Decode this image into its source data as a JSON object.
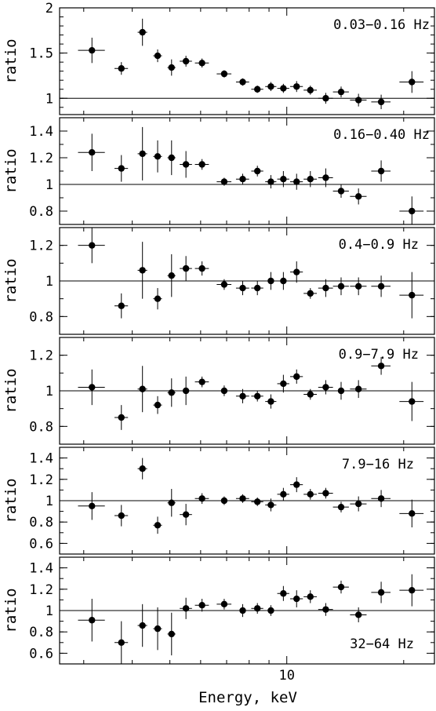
{
  "chart_data": [
    {
      "type": "scatter",
      "panel_label": "0.03−0.16 Hz",
      "ylabel": "ratio",
      "ylim": [
        0.82,
        2.0
      ],
      "yticks": [
        1,
        1.5,
        2
      ],
      "ytick_labels": [
        "1",
        "1.5",
        "2"
      ],
      "reference_line": 1,
      "points": [
        {
          "x": 3.15,
          "xerr": [
            0.25,
            0.25
          ],
          "y": 1.53,
          "yerr": 0.14
        },
        {
          "x": 3.75,
          "xerr": [
            0.15,
            0.15
          ],
          "y": 1.33,
          "yerr": 0.07
        },
        {
          "x": 4.25,
          "xerr": [
            0.12,
            0.12
          ],
          "y": 1.73,
          "yerr": 0.15
        },
        {
          "x": 4.65,
          "xerr": [
            0.12,
            0.12
          ],
          "y": 1.47,
          "yerr": 0.07
        },
        {
          "x": 5.05,
          "xerr": [
            0.12,
            0.12
          ],
          "y": 1.34,
          "yerr": 0.09
        },
        {
          "x": 5.5,
          "xerr": [
            0.2,
            0.2
          ],
          "y": 1.41,
          "yerr": 0.06
        },
        {
          "x": 6.05,
          "xerr": [
            0.25,
            0.25
          ],
          "y": 1.39,
          "yerr": 0.05
        },
        {
          "x": 6.9,
          "xerr": [
            0.3,
            0.3
          ],
          "y": 1.27,
          "yerr": 0.04
        },
        {
          "x": 7.7,
          "xerr": [
            0.3,
            0.3
          ],
          "y": 1.18,
          "yerr": 0.04
        },
        {
          "x": 8.4,
          "xerr": [
            0.3,
            0.3
          ],
          "y": 1.1,
          "yerr": 0.04
        },
        {
          "x": 9.1,
          "xerr": [
            0.3,
            0.3
          ],
          "y": 1.13,
          "yerr": 0.05
        },
        {
          "x": 9.8,
          "xerr": [
            0.35,
            0.35
          ],
          "y": 1.11,
          "yerr": 0.05
        },
        {
          "x": 10.6,
          "xerr": [
            0.4,
            0.4
          ],
          "y": 1.13,
          "yerr": 0.06
        },
        {
          "x": 11.5,
          "xerr": [
            0.45,
            0.45
          ],
          "y": 1.09,
          "yerr": 0.05
        },
        {
          "x": 12.6,
          "xerr": [
            0.55,
            0.55
          ],
          "y": 1.0,
          "yerr": 0.06
        },
        {
          "x": 13.8,
          "xerr": [
            0.65,
            0.65
          ],
          "y": 1.07,
          "yerr": 0.06
        },
        {
          "x": 15.3,
          "xerr": [
            0.75,
            0.75
          ],
          "y": 0.98,
          "yerr": 0.07
        },
        {
          "x": 17.5,
          "xerr": [
            1.0,
            1.0
          ],
          "y": 0.96,
          "yerr": 0.08
        },
        {
          "x": 21.0,
          "xerr": [
            1.5,
            1.5
          ],
          "y": 1.18,
          "yerr": 0.12
        }
      ]
    },
    {
      "type": "scatter",
      "panel_label": "0.16−0.40 Hz",
      "ylabel": "ratio",
      "ylim": [
        0.7,
        1.5
      ],
      "yticks": [
        0.8,
        1,
        1.2,
        1.4
      ],
      "ytick_labels": [
        "0.8",
        "1",
        "1.2",
        "1.4"
      ],
      "reference_line": 1,
      "points": [
        {
          "x": 3.15,
          "xerr": [
            0.25,
            0.25
          ],
          "y": 1.24,
          "yerr": 0.14
        },
        {
          "x": 3.75,
          "xerr": [
            0.15,
            0.15
          ],
          "y": 1.12,
          "yerr": 0.1
        },
        {
          "x": 4.25,
          "xerr": [
            0.12,
            0.12
          ],
          "y": 1.23,
          "yerr": 0.2
        },
        {
          "x": 4.65,
          "xerr": [
            0.12,
            0.12
          ],
          "y": 1.21,
          "yerr": 0.12
        },
        {
          "x": 5.05,
          "xerr": [
            0.12,
            0.12
          ],
          "y": 1.2,
          "yerr": 0.13
        },
        {
          "x": 5.5,
          "xerr": [
            0.2,
            0.2
          ],
          "y": 1.15,
          "yerr": 0.1
        },
        {
          "x": 6.05,
          "xerr": [
            0.25,
            0.25
          ],
          "y": 1.15,
          "yerr": 0.04
        },
        {
          "x": 6.9,
          "xerr": [
            0.3,
            0.3
          ],
          "y": 1.02,
          "yerr": 0.03
        },
        {
          "x": 7.7,
          "xerr": [
            0.3,
            0.3
          ],
          "y": 1.04,
          "yerr": 0.04
        },
        {
          "x": 8.4,
          "xerr": [
            0.3,
            0.3
          ],
          "y": 1.1,
          "yerr": 0.04
        },
        {
          "x": 9.1,
          "xerr": [
            0.3,
            0.3
          ],
          "y": 1.02,
          "yerr": 0.05
        },
        {
          "x": 9.8,
          "xerr": [
            0.35,
            0.35
          ],
          "y": 1.04,
          "yerr": 0.06
        },
        {
          "x": 10.6,
          "xerr": [
            0.4,
            0.4
          ],
          "y": 1.02,
          "yerr": 0.06
        },
        {
          "x": 11.5,
          "xerr": [
            0.45,
            0.45
          ],
          "y": 1.04,
          "yerr": 0.06
        },
        {
          "x": 12.6,
          "xerr": [
            0.55,
            0.55
          ],
          "y": 1.05,
          "yerr": 0.07
        },
        {
          "x": 13.8,
          "xerr": [
            0.65,
            0.65
          ],
          "y": 0.95,
          "yerr": 0.05
        },
        {
          "x": 15.3,
          "xerr": [
            0.75,
            0.75
          ],
          "y": 0.91,
          "yerr": 0.06
        },
        {
          "x": 17.5,
          "xerr": [
            1.0,
            1.0
          ],
          "y": 1.1,
          "yerr": 0.08
        },
        {
          "x": 21.0,
          "xerr": [
            1.5,
            1.5
          ],
          "y": 0.8,
          "yerr": 0.11
        }
      ]
    },
    {
      "type": "scatter",
      "panel_label": "0.4−0.9 Hz",
      "ylabel": "ratio",
      "ylim": [
        0.7,
        1.3
      ],
      "yticks": [
        0.8,
        1,
        1.2
      ],
      "ytick_labels": [
        "0.8",
        "1",
        "1.2"
      ],
      "reference_line": 1,
      "points": [
        {
          "x": 3.15,
          "xerr": [
            0.25,
            0.25
          ],
          "y": 1.2,
          "yerr": 0.1
        },
        {
          "x": 3.75,
          "xerr": [
            0.15,
            0.15
          ],
          "y": 0.86,
          "yerr": 0.07
        },
        {
          "x": 4.25,
          "xerr": [
            0.12,
            0.12
          ],
          "y": 1.06,
          "yerr": 0.16
        },
        {
          "x": 4.65,
          "xerr": [
            0.12,
            0.12
          ],
          "y": 0.9,
          "yerr": 0.06
        },
        {
          "x": 5.05,
          "xerr": [
            0.12,
            0.12
          ],
          "y": 1.03,
          "yerr": 0.12
        },
        {
          "x": 5.5,
          "xerr": [
            0.2,
            0.2
          ],
          "y": 1.07,
          "yerr": 0.07
        },
        {
          "x": 6.05,
          "xerr": [
            0.25,
            0.25
          ],
          "y": 1.07,
          "yerr": 0.04
        },
        {
          "x": 6.9,
          "xerr": [
            0.3,
            0.3
          ],
          "y": 0.98,
          "yerr": 0.03
        },
        {
          "x": 7.7,
          "xerr": [
            0.3,
            0.3
          ],
          "y": 0.96,
          "yerr": 0.04
        },
        {
          "x": 8.4,
          "xerr": [
            0.3,
            0.3
          ],
          "y": 0.96,
          "yerr": 0.04
        },
        {
          "x": 9.1,
          "xerr": [
            0.3,
            0.3
          ],
          "y": 1.0,
          "yerr": 0.05
        },
        {
          "x": 9.8,
          "xerr": [
            0.35,
            0.35
          ],
          "y": 1.0,
          "yerr": 0.05
        },
        {
          "x": 10.6,
          "xerr": [
            0.4,
            0.4
          ],
          "y": 1.05,
          "yerr": 0.06
        },
        {
          "x": 11.5,
          "xerr": [
            0.45,
            0.45
          ],
          "y": 0.93,
          "yerr": 0.03
        },
        {
          "x": 12.6,
          "xerr": [
            0.55,
            0.55
          ],
          "y": 0.96,
          "yerr": 0.05
        },
        {
          "x": 13.8,
          "xerr": [
            0.65,
            0.65
          ],
          "y": 0.97,
          "yerr": 0.05
        },
        {
          "x": 15.3,
          "xerr": [
            0.75,
            0.75
          ],
          "y": 0.97,
          "yerr": 0.05
        },
        {
          "x": 17.5,
          "xerr": [
            1.0,
            1.0
          ],
          "y": 0.97,
          "yerr": 0.06
        },
        {
          "x": 21.0,
          "xerr": [
            1.5,
            1.5
          ],
          "y": 0.92,
          "yerr": 0.13
        }
      ]
    },
    {
      "type": "scatter",
      "panel_label": "0.9−7.9 Hz",
      "ylabel": "ratio",
      "ylim": [
        0.7,
        1.3
      ],
      "yticks": [
        0.8,
        1,
        1.2
      ],
      "ytick_labels": [
        "0.8",
        "1",
        "1.2"
      ],
      "reference_line": 1,
      "points": [
        {
          "x": 3.15,
          "xerr": [
            0.25,
            0.25
          ],
          "y": 1.02,
          "yerr": 0.1
        },
        {
          "x": 3.75,
          "xerr": [
            0.15,
            0.15
          ],
          "y": 0.85,
          "yerr": 0.07
        },
        {
          "x": 4.25,
          "xerr": [
            0.12,
            0.12
          ],
          "y": 1.01,
          "yerr": 0.13
        },
        {
          "x": 4.65,
          "xerr": [
            0.12,
            0.12
          ],
          "y": 0.92,
          "yerr": 0.05
        },
        {
          "x": 5.05,
          "xerr": [
            0.12,
            0.12
          ],
          "y": 0.99,
          "yerr": 0.08
        },
        {
          "x": 5.5,
          "xerr": [
            0.2,
            0.2
          ],
          "y": 1.0,
          "yerr": 0.08
        },
        {
          "x": 6.05,
          "xerr": [
            0.25,
            0.25
          ],
          "y": 1.05,
          "yerr": 0.03
        },
        {
          "x": 6.9,
          "xerr": [
            0.3,
            0.3
          ],
          "y": 1.0,
          "yerr": 0.03
        },
        {
          "x": 7.7,
          "xerr": [
            0.3,
            0.3
          ],
          "y": 0.97,
          "yerr": 0.04
        },
        {
          "x": 8.4,
          "xerr": [
            0.3,
            0.3
          ],
          "y": 0.97,
          "yerr": 0.03
        },
        {
          "x": 9.1,
          "xerr": [
            0.3,
            0.3
          ],
          "y": 0.94,
          "yerr": 0.04
        },
        {
          "x": 9.8,
          "xerr": [
            0.35,
            0.35
          ],
          "y": 1.04,
          "yerr": 0.05
        },
        {
          "x": 10.6,
          "xerr": [
            0.4,
            0.4
          ],
          "y": 1.08,
          "yerr": 0.04
        },
        {
          "x": 11.5,
          "xerr": [
            0.45,
            0.45
          ],
          "y": 0.98,
          "yerr": 0.03
        },
        {
          "x": 12.6,
          "xerr": [
            0.55,
            0.55
          ],
          "y": 1.02,
          "yerr": 0.04
        },
        {
          "x": 13.8,
          "xerr": [
            0.65,
            0.65
          ],
          "y": 1.0,
          "yerr": 0.05
        },
        {
          "x": 15.3,
          "xerr": [
            0.75,
            0.75
          ],
          "y": 1.01,
          "yerr": 0.05
        },
        {
          "x": 17.5,
          "xerr": [
            1.0,
            1.0
          ],
          "y": 1.14,
          "yerr": 0.05
        },
        {
          "x": 21.0,
          "xerr": [
            1.5,
            1.5
          ],
          "y": 0.94,
          "yerr": 0.11
        }
      ]
    },
    {
      "type": "scatter",
      "panel_label": "7.9−16 Hz",
      "ylabel": "ratio",
      "ylim": [
        0.5,
        1.5
      ],
      "yticks": [
        0.6,
        0.8,
        1,
        1.2,
        1.4
      ],
      "ytick_labels": [
        "0.6",
        "0.8",
        "1",
        "1.2",
        "1.4"
      ],
      "reference_line": 1,
      "points": [
        {
          "x": 3.15,
          "xerr": [
            0.25,
            0.25
          ],
          "y": 0.95,
          "yerr": 0.13
        },
        {
          "x": 3.75,
          "xerr": [
            0.15,
            0.15
          ],
          "y": 0.86,
          "yerr": 0.1
        },
        {
          "x": 4.25,
          "xerr": [
            0.12,
            0.12
          ],
          "y": 1.3,
          "yerr": 0.1
        },
        {
          "x": 4.65,
          "xerr": [
            0.12,
            0.12
          ],
          "y": 0.77,
          "yerr": 0.08
        },
        {
          "x": 5.05,
          "xerr": [
            0.12,
            0.12
          ],
          "y": 0.98,
          "yerr": 0.13
        },
        {
          "x": 5.5,
          "xerr": [
            0.2,
            0.2
          ],
          "y": 0.87,
          "yerr": 0.1
        },
        {
          "x": 6.05,
          "xerr": [
            0.25,
            0.25
          ],
          "y": 1.02,
          "yerr": 0.05
        },
        {
          "x": 6.9,
          "xerr": [
            0.3,
            0.3
          ],
          "y": 1.0,
          "yerr": 0.04
        },
        {
          "x": 7.7,
          "xerr": [
            0.3,
            0.3
          ],
          "y": 1.02,
          "yerr": 0.04
        },
        {
          "x": 8.4,
          "xerr": [
            0.3,
            0.3
          ],
          "y": 0.99,
          "yerr": 0.04
        },
        {
          "x": 9.1,
          "xerr": [
            0.3,
            0.3
          ],
          "y": 0.96,
          "yerr": 0.06
        },
        {
          "x": 9.8,
          "xerr": [
            0.35,
            0.35
          ],
          "y": 1.06,
          "yerr": 0.06
        },
        {
          "x": 10.6,
          "xerr": [
            0.4,
            0.4
          ],
          "y": 1.15,
          "yerr": 0.07
        },
        {
          "x": 11.5,
          "xerr": [
            0.45,
            0.45
          ],
          "y": 1.06,
          "yerr": 0.05
        },
        {
          "x": 12.6,
          "xerr": [
            0.55,
            0.55
          ],
          "y": 1.07,
          "yerr": 0.05
        },
        {
          "x": 13.8,
          "xerr": [
            0.65,
            0.65
          ],
          "y": 0.94,
          "yerr": 0.05
        },
        {
          "x": 15.3,
          "xerr": [
            0.75,
            0.75
          ],
          "y": 0.97,
          "yerr": 0.07
        },
        {
          "x": 17.5,
          "xerr": [
            1.0,
            1.0
          ],
          "y": 1.02,
          "yerr": 0.08
        },
        {
          "x": 21.0,
          "xerr": [
            1.5,
            1.5
          ],
          "y": 0.88,
          "yerr": 0.13
        }
      ]
    },
    {
      "type": "scatter",
      "panel_label": "32−64 Hz",
      "ylabel": "ratio",
      "xlabel": "Energy, keV",
      "xticks": [
        10
      ],
      "xtick_labels": [
        "10"
      ],
      "xscale": "log",
      "xlim": [
        2.6,
        24.0
      ],
      "ylim": [
        0.5,
        1.5
      ],
      "yticks": [
        0.6,
        0.8,
        1,
        1.2,
        1.4
      ],
      "ytick_labels": [
        "0.6",
        "0.8",
        "1",
        "1.2",
        "1.4"
      ],
      "reference_line": 1,
      "points": [
        {
          "x": 3.15,
          "xerr": [
            0.25,
            0.25
          ],
          "y": 0.91,
          "yerr": 0.2
        },
        {
          "x": 3.75,
          "xerr": [
            0.15,
            0.15
          ],
          "y": 0.7,
          "yerr": 0.2
        },
        {
          "x": 4.25,
          "xerr": [
            0.12,
            0.12
          ],
          "y": 0.86,
          "yerr": 0.2
        },
        {
          "x": 4.65,
          "xerr": [
            0.12,
            0.12
          ],
          "y": 0.83,
          "yerr": 0.2
        },
        {
          "x": 5.05,
          "xerr": [
            0.12,
            0.12
          ],
          "y": 0.78,
          "yerr": 0.2
        },
        {
          "x": 5.5,
          "xerr": [
            0.2,
            0.2
          ],
          "y": 1.02,
          "yerr": 0.1
        },
        {
          "x": 6.05,
          "xerr": [
            0.25,
            0.25
          ],
          "y": 1.05,
          "yerr": 0.06
        },
        {
          "x": 6.9,
          "xerr": [
            0.3,
            0.3
          ],
          "y": 1.06,
          "yerr": 0.05
        },
        {
          "x": 7.7,
          "xerr": [
            0.3,
            0.3
          ],
          "y": 1.0,
          "yerr": 0.06
        },
        {
          "x": 8.4,
          "xerr": [
            0.3,
            0.3
          ],
          "y": 1.02,
          "yerr": 0.05
        },
        {
          "x": 9.1,
          "xerr": [
            0.3,
            0.3
          ],
          "y": 1.0,
          "yerr": 0.05
        },
        {
          "x": 9.8,
          "xerr": [
            0.35,
            0.35
          ],
          "y": 1.16,
          "yerr": 0.07
        },
        {
          "x": 10.6,
          "xerr": [
            0.4,
            0.4
          ],
          "y": 1.11,
          "yerr": 0.08
        },
        {
          "x": 11.5,
          "xerr": [
            0.45,
            0.45
          ],
          "y": 1.13,
          "yerr": 0.06
        },
        {
          "x": 12.6,
          "xerr": [
            0.55,
            0.55
          ],
          "y": 1.01,
          "yerr": 0.06
        },
        {
          "x": 13.8,
          "xerr": [
            0.65,
            0.65
          ],
          "y": 1.22,
          "yerr": 0.06
        },
        {
          "x": 15.3,
          "xerr": [
            0.75,
            0.75
          ],
          "y": 0.96,
          "yerr": 0.07
        },
        {
          "x": 17.5,
          "xerr": [
            1.0,
            1.0
          ],
          "y": 1.17,
          "yerr": 0.1
        },
        {
          "x": 21.0,
          "xerr": [
            1.5,
            1.5
          ],
          "y": 1.19,
          "yerr": 0.15
        }
      ]
    }
  ]
}
